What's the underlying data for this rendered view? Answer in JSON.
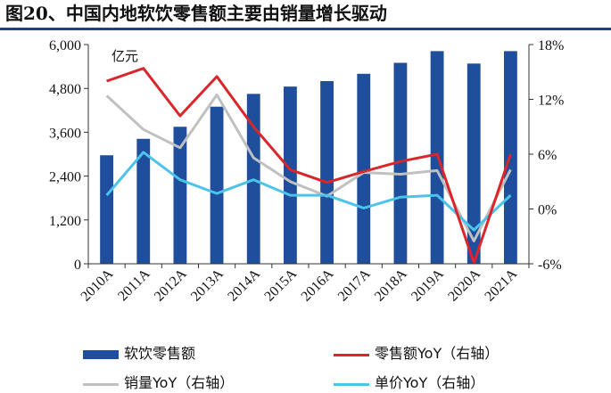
{
  "header": {
    "title": "图20、中国内地软饮零售额主要由销量增长驱动"
  },
  "chart_data": {
    "type": "bar",
    "categories": [
      "2010A",
      "2011A",
      "2012A",
      "2013A",
      "2014A",
      "2015A",
      "2016A",
      "2017A",
      "2018A",
      "2019A",
      "2020A",
      "2021A"
    ],
    "unit_label": "亿元",
    "left_axis": {
      "ylim": [
        0,
        6000
      ],
      "ticks": [
        "0",
        "1,200",
        "2,400",
        "3,600",
        "4,800",
        "6,000"
      ]
    },
    "right_axis": {
      "ylim": [
        -6,
        18
      ],
      "ticks": [
        "-6%",
        "0%",
        "6%",
        "12%",
        "18%"
      ]
    },
    "series": [
      {
        "name": "软饮零售额",
        "type": "bar",
        "axis": "left",
        "color": "#1f4e9c",
        "values": [
          2970,
          3420,
          3750,
          4300,
          4650,
          4850,
          5000,
          5200,
          5500,
          5820,
          5480,
          5820
        ]
      },
      {
        "name": "零售额YoY（右轴）",
        "type": "line",
        "axis": "right",
        "color": "#d9262b",
        "values": [
          14.0,
          15.4,
          10.2,
          14.5,
          9.0,
          4.3,
          2.9,
          4.1,
          5.2,
          6.0,
          -5.9,
          6.0
        ]
      },
      {
        "name": "销量YoY（右轴）",
        "type": "line",
        "axis": "right",
        "color": "#c0c0c0",
        "values": [
          12.4,
          8.7,
          6.7,
          12.5,
          5.6,
          3.0,
          1.4,
          4.0,
          3.8,
          4.2,
          -3.5,
          4.3
        ]
      },
      {
        "name": "单价YoY（右轴）",
        "type": "line",
        "axis": "right",
        "color": "#4cc3ea",
        "values": [
          1.5,
          6.2,
          3.2,
          1.7,
          3.2,
          1.5,
          1.5,
          0.1,
          1.3,
          1.5,
          -2.3,
          1.5
        ]
      }
    ]
  }
}
